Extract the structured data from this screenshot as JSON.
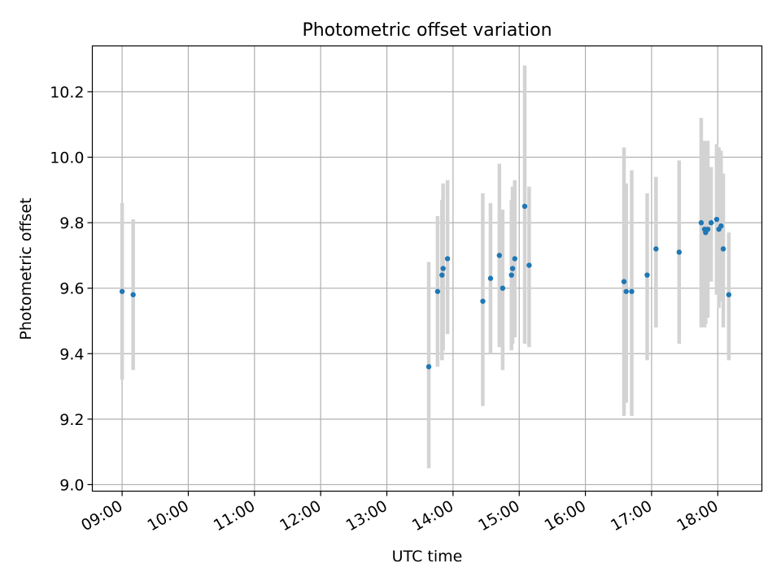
{
  "chart_data": {
    "type": "scatter",
    "title": "Photometric offset variation",
    "xlabel": "UTC time",
    "ylabel": "Photometric offset",
    "xlim": [
      "08:33",
      "18:40"
    ],
    "ylim": [
      8.98,
      10.34
    ],
    "x_ticks": [
      "09:00",
      "10:00",
      "11:00",
      "12:00",
      "13:00",
      "14:00",
      "15:00",
      "16:00",
      "17:00",
      "18:00"
    ],
    "y_ticks": [
      9.0,
      9.2,
      9.4,
      9.6,
      9.8,
      10.0,
      10.2
    ],
    "grid": true,
    "point_color": "#1f77b4",
    "errorbar_color": "#d3d3d3",
    "points": [
      {
        "t": "09:00",
        "y": 9.59,
        "lo": 9.32,
        "hi": 9.86
      },
      {
        "t": "09:10",
        "y": 9.58,
        "lo": 9.35,
        "hi": 9.81
      },
      {
        "t": "13:38",
        "y": 9.36,
        "lo": 9.05,
        "hi": 9.68
      },
      {
        "t": "13:46",
        "y": 9.59,
        "lo": 9.36,
        "hi": 9.82
      },
      {
        "t": "13:50",
        "y": 9.64,
        "lo": 9.38,
        "hi": 9.87
      },
      {
        "t": "13:51",
        "y": 9.66,
        "lo": 9.41,
        "hi": 9.92
      },
      {
        "t": "13:55",
        "y": 9.69,
        "lo": 9.46,
        "hi": 9.93
      },
      {
        "t": "14:27",
        "y": 9.56,
        "lo": 9.24,
        "hi": 9.89
      },
      {
        "t": "14:34",
        "y": 9.63,
        "lo": 9.4,
        "hi": 9.86
      },
      {
        "t": "14:42",
        "y": 9.7,
        "lo": 9.42,
        "hi": 9.98
      },
      {
        "t": "14:45",
        "y": 9.6,
        "lo": 9.35,
        "hi": 9.84
      },
      {
        "t": "14:53",
        "y": 9.64,
        "lo": 9.41,
        "hi": 9.87
      },
      {
        "t": "14:54",
        "y": 9.66,
        "lo": 9.43,
        "hi": 9.91
      },
      {
        "t": "14:56",
        "y": 9.69,
        "lo": 9.45,
        "hi": 9.93
      },
      {
        "t": "15:05",
        "y": 9.85,
        "lo": 9.43,
        "hi": 10.28
      },
      {
        "t": "15:09",
        "y": 9.67,
        "lo": 9.42,
        "hi": 9.91
      },
      {
        "t": "16:35",
        "y": 9.62,
        "lo": 9.21,
        "hi": 10.03
      },
      {
        "t": "16:37",
        "y": 9.59,
        "lo": 9.25,
        "hi": 9.92
      },
      {
        "t": "16:42",
        "y": 9.59,
        "lo": 9.21,
        "hi": 9.96
      },
      {
        "t": "16:56",
        "y": 9.64,
        "lo": 9.38,
        "hi": 9.89
      },
      {
        "t": "17:04",
        "y": 9.72,
        "lo": 9.48,
        "hi": 9.94
      },
      {
        "t": "17:25",
        "y": 9.71,
        "lo": 9.43,
        "hi": 9.99
      },
      {
        "t": "17:45",
        "y": 9.8,
        "lo": 9.48,
        "hi": 10.12
      },
      {
        "t": "17:48",
        "y": 9.78,
        "lo": 9.48,
        "hi": 10.05
      },
      {
        "t": "17:49",
        "y": 9.77,
        "lo": 9.49,
        "hi": 10.05
      },
      {
        "t": "17:51",
        "y": 9.78,
        "lo": 9.51,
        "hi": 10.05
      },
      {
        "t": "17:54",
        "y": 9.8,
        "lo": 9.62,
        "hi": 9.97
      },
      {
        "t": "17:59",
        "y": 9.81,
        "lo": 9.58,
        "hi": 10.04
      },
      {
        "t": "18:01",
        "y": 9.78,
        "lo": 9.54,
        "hi": 10.03
      },
      {
        "t": "18:03",
        "y": 9.79,
        "lo": 9.56,
        "hi": 10.02
      },
      {
        "t": "18:05",
        "y": 9.72,
        "lo": 9.48,
        "hi": 9.95
      },
      {
        "t": "18:10",
        "y": 9.58,
        "lo": 9.38,
        "hi": 9.77
      }
    ]
  }
}
